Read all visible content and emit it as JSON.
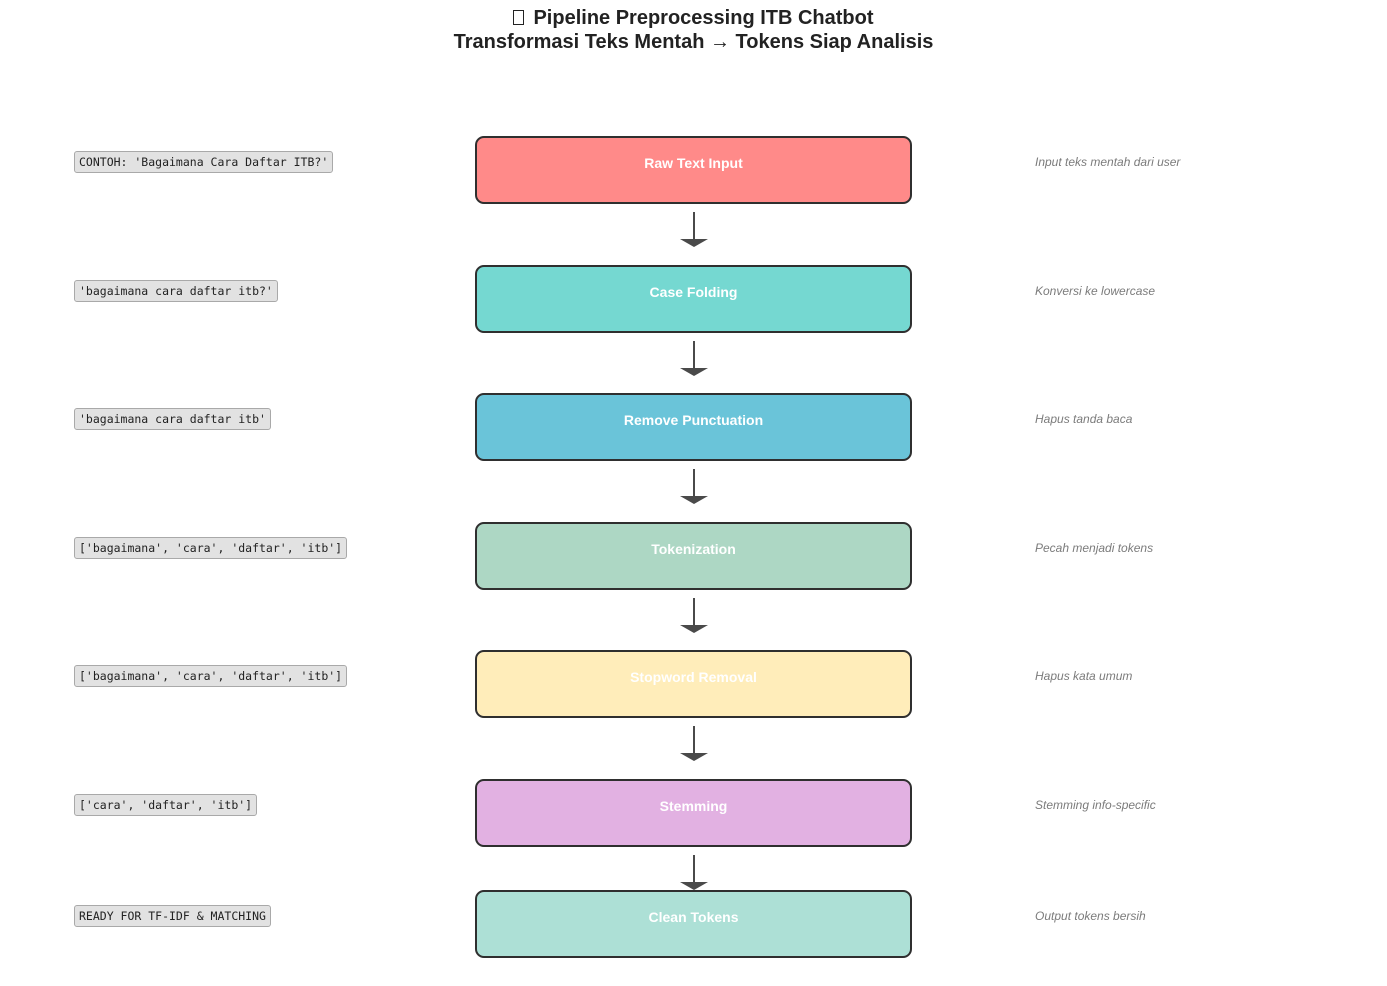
{
  "title": {
    "icon": "unrendered-glyph-box",
    "line1": "Pipeline Preprocessing ITB Chatbot",
    "line2": "Transformasi Teks Mentah → Tokens Siap Analisis"
  },
  "pipeline": {
    "steps": [
      {
        "label": "Raw Text Input",
        "sample": "CONTOH: 'Bagaimana Cara Daftar ITB?'",
        "description": "Input teks mentah dari user",
        "color": "#FF8A89"
      },
      {
        "label": "Case Folding",
        "sample": "'bagaimana cara daftar itb?'",
        "description": "Konversi ke lowercase",
        "color": "#75D8D1"
      },
      {
        "label": "Remove Punctuation",
        "sample": "'bagaimana cara daftar itb'",
        "description": "Hapus tanda baca",
        "color": "#6AC4D9"
      },
      {
        "label": "Tokenization",
        "sample": "['bagaimana', 'cara', 'daftar', 'itb']",
        "description": "Pecah menjadi tokens",
        "color": "#ADD7C4"
      },
      {
        "label": "Stopword Removal",
        "sample": "['bagaimana', 'cara', 'daftar', 'itb']",
        "description": "Hapus kata umum",
        "color": "#FFEDBA"
      },
      {
        "label": "Stemming",
        "sample": "['cara', 'daftar', 'itb']",
        "description": "Stemming info-specific",
        "color": "#E2B1E2"
      },
      {
        "label": "Clean Tokens",
        "sample": "READY FOR TF-IDF & MATCHING",
        "description": "Output tokens bersih",
        "color": "#ADE0D6"
      }
    ],
    "arrow_color": "#4a4a4a"
  }
}
